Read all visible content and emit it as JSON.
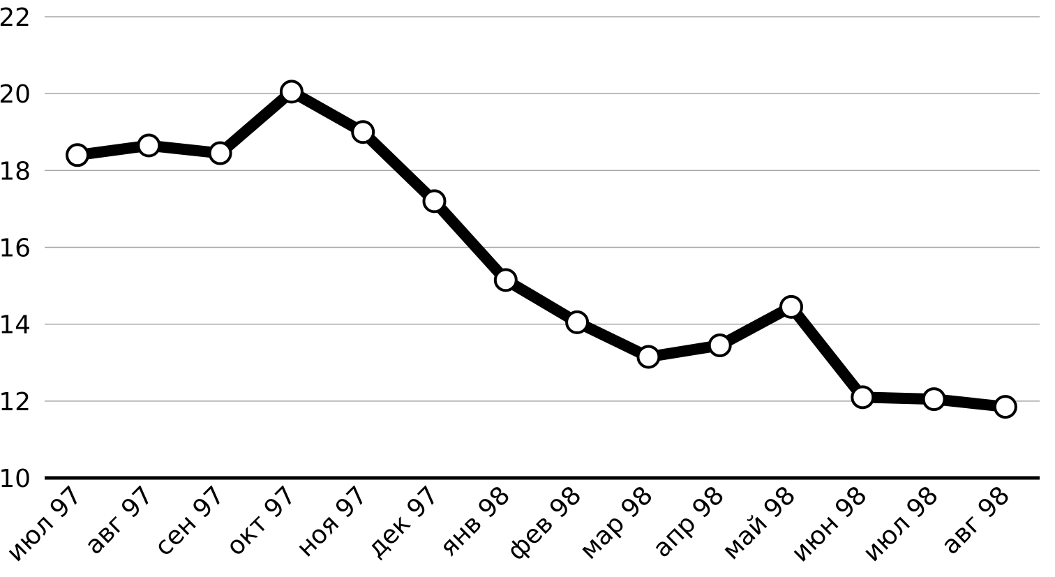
{
  "chart_data": {
    "type": "line",
    "title": "",
    "xlabel": "",
    "ylabel": "",
    "categories": [
      "июл 97",
      "авг 97",
      "сен 97",
      "окт 97",
      "ноя 97",
      "дек 97",
      "янв 98",
      "фев 98",
      "мар 98",
      "апр 98",
      "май 98",
      "июн 98",
      "июл 98",
      "авг 98"
    ],
    "series": [
      {
        "values": [
          18.4,
          18.65,
          18.45,
          20.05,
          19.0,
          17.2,
          15.15,
          14.05,
          13.15,
          13.45,
          14.45,
          12.1,
          12.05,
          11.85
        ]
      }
    ],
    "ylim": [
      10,
      22
    ],
    "yticks": [
      10,
      12,
      14,
      16,
      18,
      20,
      22
    ],
    "grid": true,
    "legend": "none",
    "x_label_rotation": "diagonal",
    "colors": {
      "line": "#000000",
      "marker_fill": "#ffffff",
      "grid": "#a6a6a6"
    }
  }
}
